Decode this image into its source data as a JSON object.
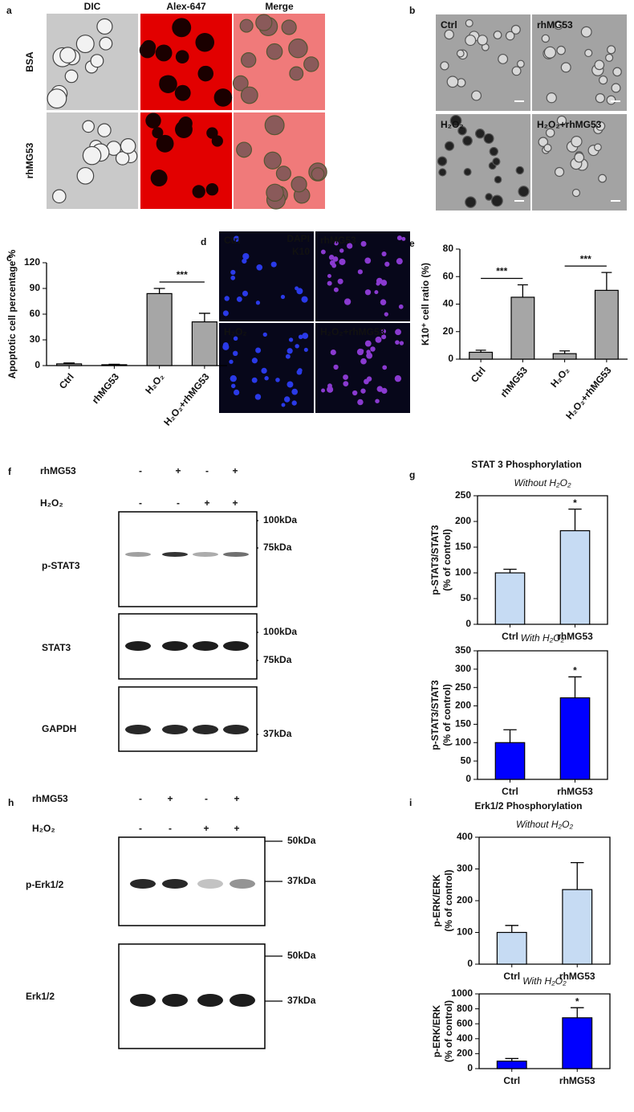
{
  "panels": {
    "letters": [
      "a",
      "b",
      "c",
      "d",
      "e",
      "f",
      "g",
      "h",
      "i"
    ],
    "a": {
      "columns": [
        "DIC",
        "Alex-647",
        "Merge"
      ],
      "rows": [
        "BSA",
        "rhMG53"
      ]
    },
    "b": {
      "labels": [
        "Ctrl",
        "rhMG53",
        "H₂O₂",
        "H₂O₂+rhMG53"
      ]
    },
    "d": {
      "labels": [
        "Ctrl",
        "rhMG53",
        "H₂O₂",
        "H₂O₂+rhMG53"
      ],
      "stains": [
        "DAPI",
        "K10"
      ]
    },
    "f": {
      "treatments": [
        {
          "name": "rhMG53",
          "signs": [
            "-",
            "+",
            "-",
            "+"
          ]
        },
        {
          "name": "H₂O₂",
          "signs": [
            "-",
            "-",
            "+",
            "+"
          ]
        }
      ],
      "blots": [
        {
          "name": "p-STAT3",
          "markers": [
            "100kDa",
            "75kDa"
          ]
        },
        {
          "name": "STAT3",
          "markers": [
            "100kDa",
            "75kDa"
          ]
        },
        {
          "name": "GAPDH",
          "markers": [
            "37kDa"
          ]
        }
      ]
    },
    "h": {
      "treatments": [
        {
          "name": "rhMG53",
          "signs": [
            "-",
            "+",
            "-",
            "+"
          ]
        },
        {
          "name": "H₂O₂",
          "signs": [
            "-",
            "-",
            "+",
            "+"
          ]
        }
      ],
      "blots": [
        {
          "name": "p-Erk1/2",
          "markers": [
            "50kDa",
            "37kDa"
          ]
        },
        {
          "name": "Erk1/2",
          "markers": [
            "50kDa",
            "37kDa"
          ]
        }
      ]
    }
  },
  "chart_data": [
    {
      "type": "bar",
      "y_label": [
        "Apoptotic cell percentage %"
      ],
      "categories": [
        "Ctrl",
        "rhMG53",
        "H₂O₂",
        "H₂O₂+rhMG53"
      ],
      "values": [
        2,
        1,
        84,
        51
      ],
      "errors": [
        1,
        0.5,
        6,
        10
      ],
      "color": "#a6a6a6",
      "ylim": [
        0,
        120
      ],
      "yticks": [
        0,
        30,
        60,
        90,
        120
      ],
      "annotations": [
        "***"
      ]
    },
    {
      "type": "bar",
      "y_label": [
        "K10⁺ cell ratio (%)"
      ],
      "categories": [
        "Ctrl",
        "rhMG53",
        "H₂O₂",
        "H₂O₂+rhMG53"
      ],
      "values": [
        5,
        45,
        4,
        50
      ],
      "errors": [
        1.5,
        9,
        2,
        13
      ],
      "color": "#a6a6a6",
      "ylim": [
        0,
        80
      ],
      "yticks": [
        0,
        20,
        40,
        60,
        80
      ],
      "annotations": [
        "***",
        "***"
      ]
    },
    {
      "type": "bar",
      "title": "STAT 3 Phosphorylation",
      "subtitle": "Without H₂O₂",
      "y_label": [
        "p-STAT3/STAT3",
        "(% of control)"
      ],
      "categories": [
        "Ctrl",
        "rhMG53"
      ],
      "values": [
        100,
        182
      ],
      "errors": [
        7,
        42
      ],
      "color": "#c6dbf3",
      "ylim": [
        0,
        250
      ],
      "yticks": [
        0,
        50,
        100,
        150,
        200,
        250
      ],
      "annotations": [
        "*"
      ]
    },
    {
      "type": "bar",
      "subtitle": "With H₂O₂",
      "y_label": [
        "p-STAT3/STAT3",
        "(% of control)"
      ],
      "categories": [
        "Ctrl",
        "rhMG53"
      ],
      "values": [
        100,
        222
      ],
      "errors": [
        35,
        57
      ],
      "color": "#0000ff",
      "ylim": [
        0,
        350
      ],
      "yticks": [
        0,
        50,
        100,
        150,
        200,
        250,
        300,
        350
      ],
      "annotations": [
        "*"
      ]
    },
    {
      "type": "bar",
      "title": "Erk1/2 Phosphorylation",
      "subtitle": "Without H₂O₂",
      "y_label": [
        "p-ERK/ERK",
        "(% of control)"
      ],
      "categories": [
        "Ctrl",
        "rhMG53"
      ],
      "values": [
        100,
        235
      ],
      "errors": [
        22,
        85
      ],
      "color": "#c6dbf3",
      "ylim": [
        0,
        400
      ],
      "yticks": [
        0,
        100,
        200,
        300,
        400
      ]
    },
    {
      "type": "bar",
      "subtitle": "With H₂O₂",
      "y_label": [
        "p-ERK/ERK",
        "(% of control)"
      ],
      "categories": [
        "Ctrl",
        "rhMG53"
      ],
      "values": [
        100,
        680
      ],
      "errors": [
        35,
        135
      ],
      "color": "#0000ff",
      "ylim": [
        0,
        1000
      ],
      "yticks": [
        0,
        200,
        400,
        600,
        800,
        1000
      ],
      "annotations": [
        "*"
      ]
    }
  ]
}
